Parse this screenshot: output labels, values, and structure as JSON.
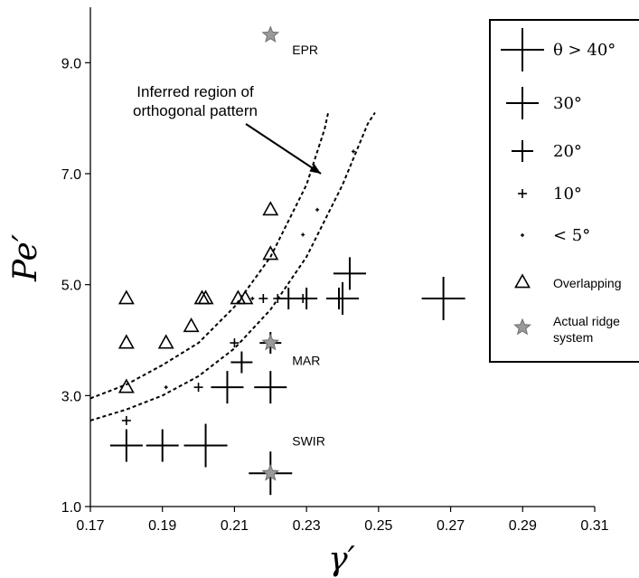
{
  "chart_data": {
    "type": "scatter",
    "title": "",
    "xlabel": "γ′",
    "ylabel": "Pe′",
    "xlim": [
      0.17,
      0.31
    ],
    "ylim": [
      1.0,
      10.0
    ],
    "x_ticks": [
      "0.17",
      "0.19",
      "0.21",
      "0.23",
      "0.25",
      "0.27",
      "0.29",
      "0.31"
    ],
    "y_ticks": [
      "1.0",
      "3.0",
      "5.0",
      "7.0",
      "9.0"
    ],
    "grid": false,
    "legend_position": "top-right",
    "legend": [
      {
        "symbol": "plus",
        "size_class": "gt40",
        "label": "θ > 40°"
      },
      {
        "symbol": "plus",
        "size_class": "30",
        "label": "30°"
      },
      {
        "symbol": "plus",
        "size_class": "20",
        "label": "20°"
      },
      {
        "symbol": "plus",
        "size_class": "10",
        "label": "10°"
      },
      {
        "symbol": "plus",
        "size_class": "lt5",
        "label": "< 5°"
      },
      {
        "symbol": "triangle",
        "label": "Overlapping"
      },
      {
        "symbol": "star",
        "label": "Actual ridge system"
      }
    ],
    "series": [
      {
        "symbol": "plus",
        "size_class": "gt40",
        "points": [
          [
            0.202,
            2.1
          ],
          [
            0.22,
            1.6
          ],
          [
            0.268,
            4.75
          ]
        ]
      },
      {
        "symbol": "plus",
        "size_class": "30",
        "points": [
          [
            0.18,
            2.1
          ],
          [
            0.19,
            2.1
          ],
          [
            0.208,
            3.15
          ],
          [
            0.22,
            3.15
          ],
          [
            0.242,
            5.2
          ],
          [
            0.24,
            4.75
          ]
        ]
      },
      {
        "symbol": "plus",
        "size_class": "20",
        "points": [
          [
            0.212,
            3.6
          ],
          [
            0.22,
            3.95
          ],
          [
            0.239,
            4.75
          ],
          [
            0.23,
            4.75
          ],
          [
            0.225,
            4.75
          ]
        ]
      },
      {
        "symbol": "plus",
        "size_class": "10",
        "points": [
          [
            0.18,
            2.55
          ],
          [
            0.2,
            3.15
          ],
          [
            0.218,
            4.75
          ],
          [
            0.222,
            4.75
          ],
          [
            0.229,
            4.75
          ],
          [
            0.21,
            3.95
          ]
        ]
      },
      {
        "symbol": "plus",
        "size_class": "lt5",
        "points": [
          [
            0.191,
            3.15
          ],
          [
            0.215,
            4.75
          ],
          [
            0.229,
            5.9
          ],
          [
            0.233,
            6.35
          ],
          [
            0.243,
            7.4
          ]
        ]
      },
      {
        "symbol": "triangle",
        "points": [
          [
            0.18,
            4.75
          ],
          [
            0.18,
            3.95
          ],
          [
            0.18,
            3.15
          ],
          [
            0.191,
            3.95
          ],
          [
            0.198,
            4.25
          ],
          [
            0.201,
            4.75
          ],
          [
            0.202,
            4.75
          ],
          [
            0.211,
            4.75
          ],
          [
            0.213,
            4.75
          ],
          [
            0.22,
            5.55
          ],
          [
            0.22,
            6.35
          ]
        ]
      },
      {
        "symbol": "star",
        "points": [
          [
            0.22,
            9.5
          ],
          [
            0.22,
            3.95
          ],
          [
            0.22,
            1.6
          ]
        ]
      }
    ],
    "curves": [
      {
        "style": "dashed",
        "points": [
          [
            0.17,
            2.95
          ],
          [
            0.18,
            3.2
          ],
          [
            0.19,
            3.55
          ],
          [
            0.2,
            3.95
          ],
          [
            0.21,
            4.6
          ],
          [
            0.22,
            5.5
          ],
          [
            0.23,
            6.8
          ],
          [
            0.235,
            7.8
          ],
          [
            0.236,
            8.1
          ]
        ]
      },
      {
        "style": "dashed",
        "points": [
          [
            0.17,
            2.55
          ],
          [
            0.18,
            2.75
          ],
          [
            0.19,
            3.0
          ],
          [
            0.2,
            3.35
          ],
          [
            0.21,
            3.85
          ],
          [
            0.22,
            4.55
          ],
          [
            0.23,
            5.5
          ],
          [
            0.24,
            6.8
          ],
          [
            0.247,
            7.9
          ],
          [
            0.249,
            8.1
          ]
        ]
      }
    ],
    "annotations": {
      "region_label_line1": "Inferred region of",
      "region_label_line2": "orthogonal pattern",
      "arrow_target": [
        0.234,
        7.0
      ],
      "sites": [
        {
          "label": "EPR",
          "at": [
            0.222,
            9.15
          ]
        },
        {
          "label": "MAR",
          "at": [
            0.222,
            3.55
          ]
        },
        {
          "label": "SWIR",
          "at": [
            0.222,
            2.1
          ]
        }
      ]
    }
  }
}
